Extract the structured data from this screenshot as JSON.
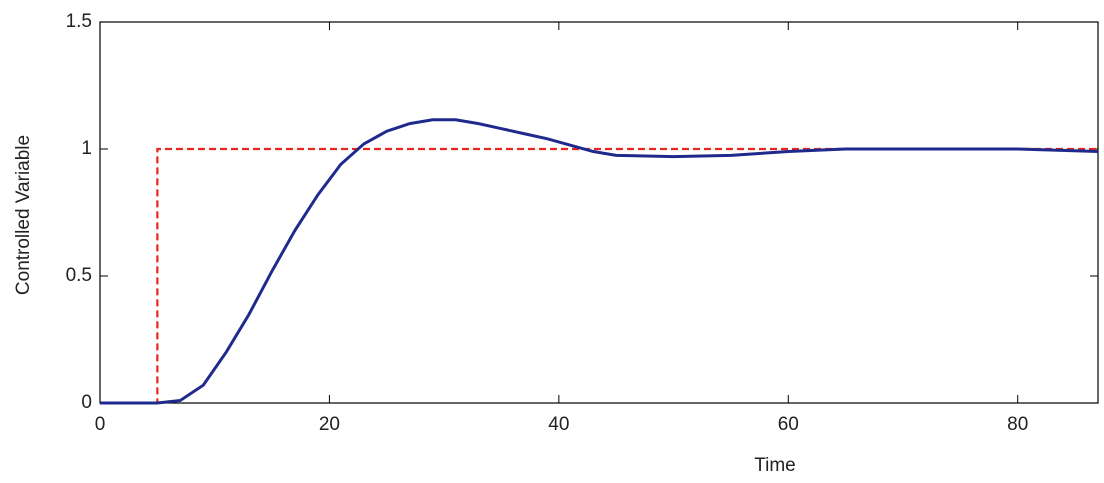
{
  "chart_data": {
    "type": "line",
    "x_label": "Time",
    "y_label": "Controlled Variable",
    "xlim": [
      0,
      87
    ],
    "xticks": [
      0,
      20,
      40,
      60,
      80
    ],
    "ylim": [
      0,
      1.5
    ],
    "yticks": [
      0,
      0.5,
      1,
      1.5
    ],
    "series": [
      {
        "color": "#e8251f",
        "dash": true,
        "x": [
          0,
          5,
          5,
          87
        ],
        "values": [
          0,
          0,
          1,
          1
        ]
      },
      {
        "color": "#1f2a8c",
        "dash": false,
        "x": [
          0,
          5,
          7,
          9,
          11,
          13,
          15,
          17,
          19,
          21,
          23,
          25,
          27,
          29,
          31,
          33,
          35,
          37,
          39,
          41,
          43,
          45,
          50,
          55,
          60,
          65,
          70,
          80,
          87
        ],
        "values": [
          0,
          0,
          0.01,
          0.07,
          0.2,
          0.35,
          0.52,
          0.68,
          0.82,
          0.94,
          1.02,
          1.07,
          1.1,
          1.115,
          1.115,
          1.1,
          1.08,
          1.06,
          1.04,
          1.015,
          0.99,
          0.975,
          0.97,
          0.975,
          0.99,
          1.0,
          1.0,
          1.0,
          0.99
        ]
      }
    ]
  }
}
